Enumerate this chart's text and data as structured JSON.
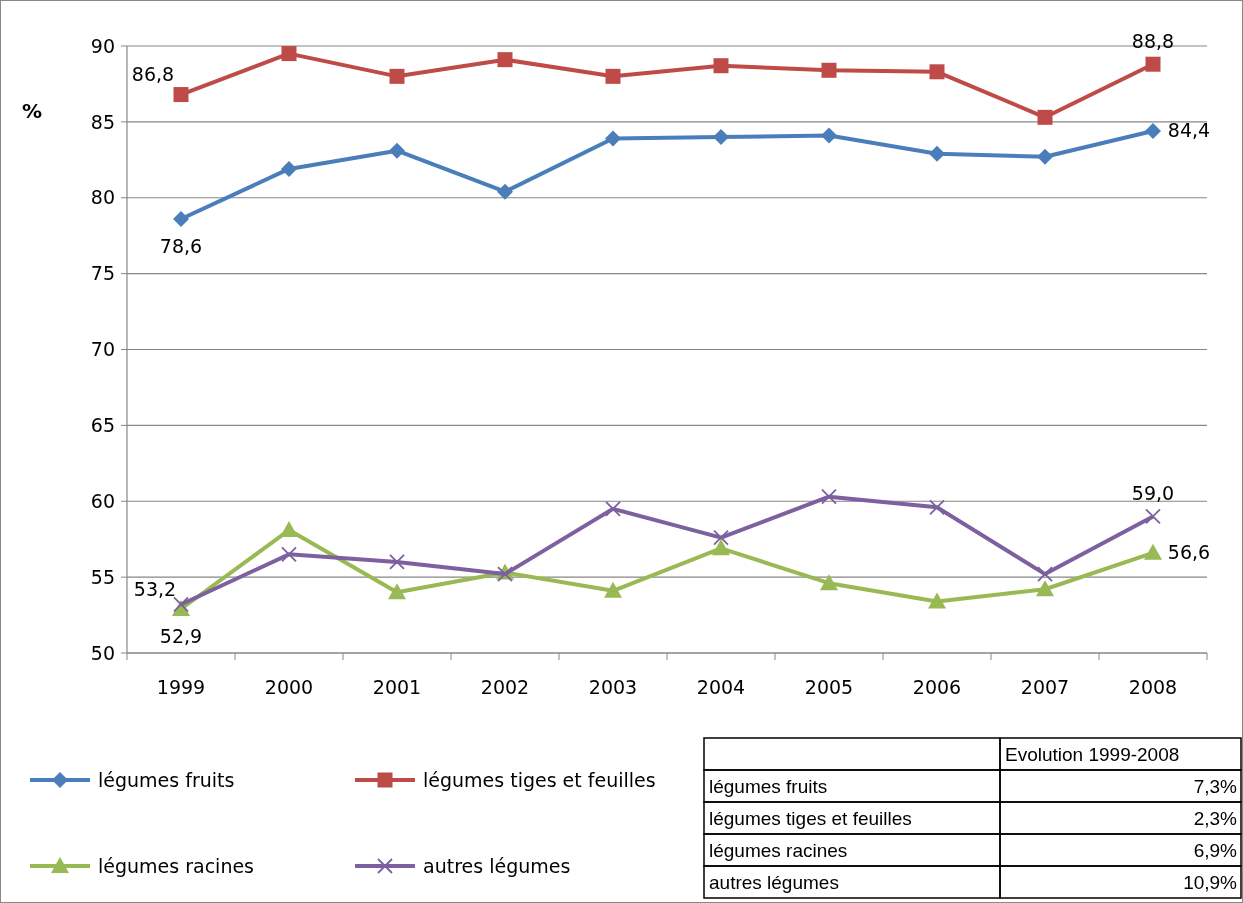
{
  "chart_data": {
    "type": "line",
    "ylabel": "%",
    "categories": [
      "1999",
      "2000",
      "2001",
      "2002",
      "2003",
      "2004",
      "2005",
      "2006",
      "2007",
      "2008"
    ],
    "ylim": [
      50,
      90
    ],
    "yticks": [
      50,
      55,
      60,
      65,
      70,
      75,
      80,
      85,
      90
    ],
    "grid": "y",
    "legend": "bottom",
    "series": [
      {
        "name": "légumes fruits",
        "color": "#4a7ebb",
        "marker": "diamond",
        "values": [
          78.6,
          81.9,
          83.1,
          80.4,
          83.9,
          84.0,
          84.1,
          82.9,
          82.7,
          84.4
        ],
        "value_labels": [
          "78,6",
          null,
          null,
          null,
          null,
          null,
          null,
          null,
          null,
          "84,4"
        ]
      },
      {
        "name": "légumes tiges et feuilles",
        "color": "#be4b48",
        "marker": "square",
        "values": [
          86.8,
          89.5,
          88.0,
          89.1,
          88.0,
          88.7,
          88.4,
          88.3,
          85.3,
          88.8
        ],
        "value_labels": [
          "86,8",
          null,
          null,
          null,
          null,
          null,
          null,
          null,
          null,
          "88,8"
        ]
      },
      {
        "name": "légumes racines",
        "color": "#98b954",
        "marker": "triangle",
        "values": [
          52.9,
          58.1,
          54.0,
          55.3,
          54.1,
          56.9,
          54.6,
          53.4,
          54.2,
          56.6
        ],
        "value_labels": [
          "52,9",
          null,
          null,
          null,
          null,
          null,
          null,
          null,
          null,
          "56,6"
        ]
      },
      {
        "name": "autres légumes",
        "color": "#7d60a0",
        "marker": "cross",
        "values": [
          53.2,
          56.5,
          56.0,
          55.2,
          59.5,
          57.6,
          60.3,
          59.6,
          55.2,
          59.0
        ],
        "value_labels": [
          "53,2",
          null,
          null,
          null,
          null,
          null,
          null,
          null,
          null,
          "59,0"
        ]
      }
    ],
    "annotations": [
      "Evolution 1999-2008",
      "légumes fruits",
      "7,3%",
      "légumes tiges et feuilles",
      "2,3%",
      "légumes racines",
      "6,9%",
      "autres légumes",
      "10,9%"
    ]
  }
}
